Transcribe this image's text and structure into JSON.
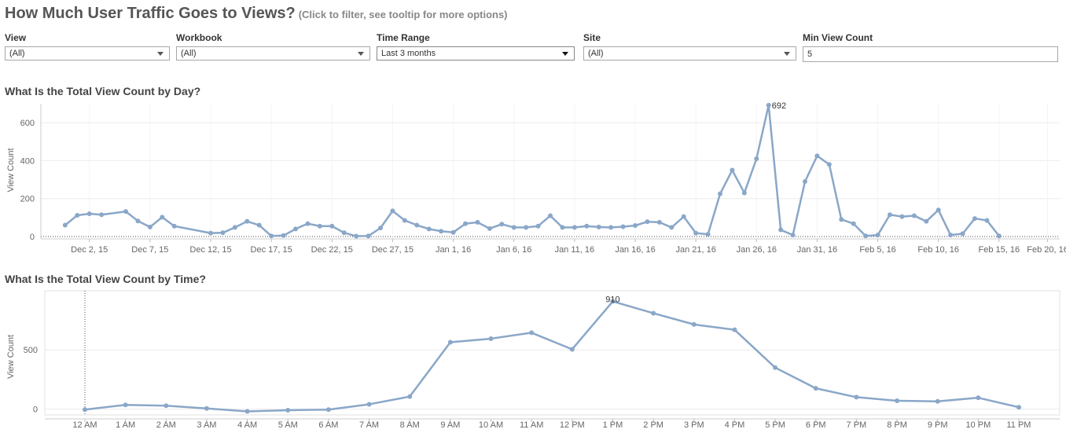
{
  "header": {
    "title": "How Much User Traffic Goes to Views?",
    "subtitle": "(Click to filter, see tooltip for more options)"
  },
  "filters": [
    {
      "label": "View",
      "value": "(All)",
      "type": "dropdown"
    },
    {
      "label": "Workbook",
      "value": "(All)",
      "type": "dropdown"
    },
    {
      "label": "Time Range",
      "value": "Last 3 months",
      "type": "dropdown"
    },
    {
      "label": "Site",
      "value": "(All)",
      "type": "dropdown"
    },
    {
      "label": "Min View Count",
      "value": "5",
      "type": "text"
    }
  ],
  "colors": {
    "line": "#8aa7c8",
    "grid": "#ececec",
    "axis": "#666666"
  },
  "chart_data": [
    {
      "type": "line",
      "title": "What Is the Total View Count by Day?",
      "ylabel": "View Count",
      "xlabel": "",
      "x_start_date": "2015-11-28",
      "x_range_days": [
        0,
        84
      ],
      "ylim": [
        0,
        700
      ],
      "yticks": [
        0,
        200,
        400,
        600
      ],
      "xticks": [
        {
          "day": 4,
          "label": "Dec 2, 15"
        },
        {
          "day": 9,
          "label": "Dec 7, 15"
        },
        {
          "day": 14,
          "label": "Dec 12, 15"
        },
        {
          "day": 19,
          "label": "Dec 17, 15"
        },
        {
          "day": 24,
          "label": "Dec 22, 15"
        },
        {
          "day": 29,
          "label": "Dec 27, 15"
        },
        {
          "day": 34,
          "label": "Jan 1, 16"
        },
        {
          "day": 39,
          "label": "Jan 6, 16"
        },
        {
          "day": 44,
          "label": "Jan 11, 16"
        },
        {
          "day": 49,
          "label": "Jan 16, 16"
        },
        {
          "day": 54,
          "label": "Jan 21, 16"
        },
        {
          "day": 59,
          "label": "Jan 26, 16"
        },
        {
          "day": 64,
          "label": "Jan 31, 16"
        },
        {
          "day": 69,
          "label": "Feb 5, 16"
        },
        {
          "day": 74,
          "label": "Feb 10, 16"
        },
        {
          "day": 79,
          "label": "Feb 15, 16"
        },
        {
          "day": 83,
          "label": "Feb 20, 16"
        }
      ],
      "points": [
        [
          2,
          60
        ],
        [
          3,
          112
        ],
        [
          4,
          120
        ],
        [
          5,
          115
        ],
        [
          7,
          132
        ],
        [
          8,
          82
        ],
        [
          9,
          50
        ],
        [
          10,
          102
        ],
        [
          11,
          55
        ],
        [
          14,
          18
        ],
        [
          15,
          20
        ],
        [
          16,
          48
        ],
        [
          17,
          80
        ],
        [
          18,
          60
        ],
        [
          19,
          3
        ],
        [
          20,
          5
        ],
        [
          21,
          40
        ],
        [
          22,
          68
        ],
        [
          23,
          55
        ],
        [
          24,
          55
        ],
        [
          25,
          20
        ],
        [
          26,
          2
        ],
        [
          27,
          3
        ],
        [
          28,
          45
        ],
        [
          29,
          135
        ],
        [
          30,
          85
        ],
        [
          31,
          60
        ],
        [
          32,
          40
        ],
        [
          33,
          28
        ],
        [
          34,
          22
        ],
        [
          35,
          68
        ],
        [
          36,
          75
        ],
        [
          37,
          42
        ],
        [
          38,
          65
        ],
        [
          39,
          48
        ],
        [
          40,
          48
        ],
        [
          41,
          55
        ],
        [
          42,
          110
        ],
        [
          43,
          48
        ],
        [
          44,
          48
        ],
        [
          45,
          55
        ],
        [
          46,
          50
        ],
        [
          47,
          48
        ],
        [
          48,
          52
        ],
        [
          49,
          58
        ],
        [
          50,
          78
        ],
        [
          51,
          75
        ],
        [
          52,
          48
        ],
        [
          53,
          105
        ],
        [
          54,
          18
        ],
        [
          55,
          12
        ],
        [
          56,
          225
        ],
        [
          57,
          350
        ],
        [
          58,
          230
        ],
        [
          59,
          410
        ],
        [
          60,
          692
        ],
        [
          61,
          35
        ],
        [
          62,
          8
        ],
        [
          63,
          290
        ],
        [
          64,
          425
        ],
        [
          65,
          380
        ],
        [
          66,
          90
        ],
        [
          67,
          68
        ],
        [
          68,
          3
        ],
        [
          69,
          8
        ],
        [
          70,
          115
        ],
        [
          71,
          105
        ],
        [
          72,
          110
        ],
        [
          73,
          80
        ],
        [
          74,
          140
        ],
        [
          75,
          8
        ],
        [
          76,
          15
        ],
        [
          77,
          95
        ],
        [
          78,
          85
        ],
        [
          79,
          3
        ]
      ],
      "annotations": [
        {
          "day": 60,
          "value": 692,
          "text": "692"
        }
      ]
    },
    {
      "type": "line",
      "title": "What Is the Total View Count by Time?",
      "ylabel": "View Count",
      "xlabel": "",
      "ylim": [
        -50,
        1000
      ],
      "yticks": [
        0,
        500
      ],
      "categories": [
        "12 AM",
        "1 AM",
        "2 AM",
        "3 AM",
        "4 AM",
        "5 AM",
        "6 AM",
        "7 AM",
        "8 AM",
        "9 AM",
        "10 AM",
        "11 AM",
        "12 PM",
        "1 PM",
        "2 PM",
        "3 PM",
        "4 PM",
        "5 PM",
        "6 PM",
        "7 PM",
        "8 PM",
        "9 PM",
        "10 PM",
        "11 PM"
      ],
      "values": [
        -5,
        35,
        28,
        5,
        -20,
        -10,
        -5,
        40,
        105,
        565,
        595,
        645,
        505,
        910,
        810,
        715,
        670,
        350,
        175,
        100,
        70,
        65,
        95,
        15
      ],
      "annotations": [
        {
          "index": 13,
          "value": 910,
          "text": "910"
        }
      ]
    }
  ]
}
